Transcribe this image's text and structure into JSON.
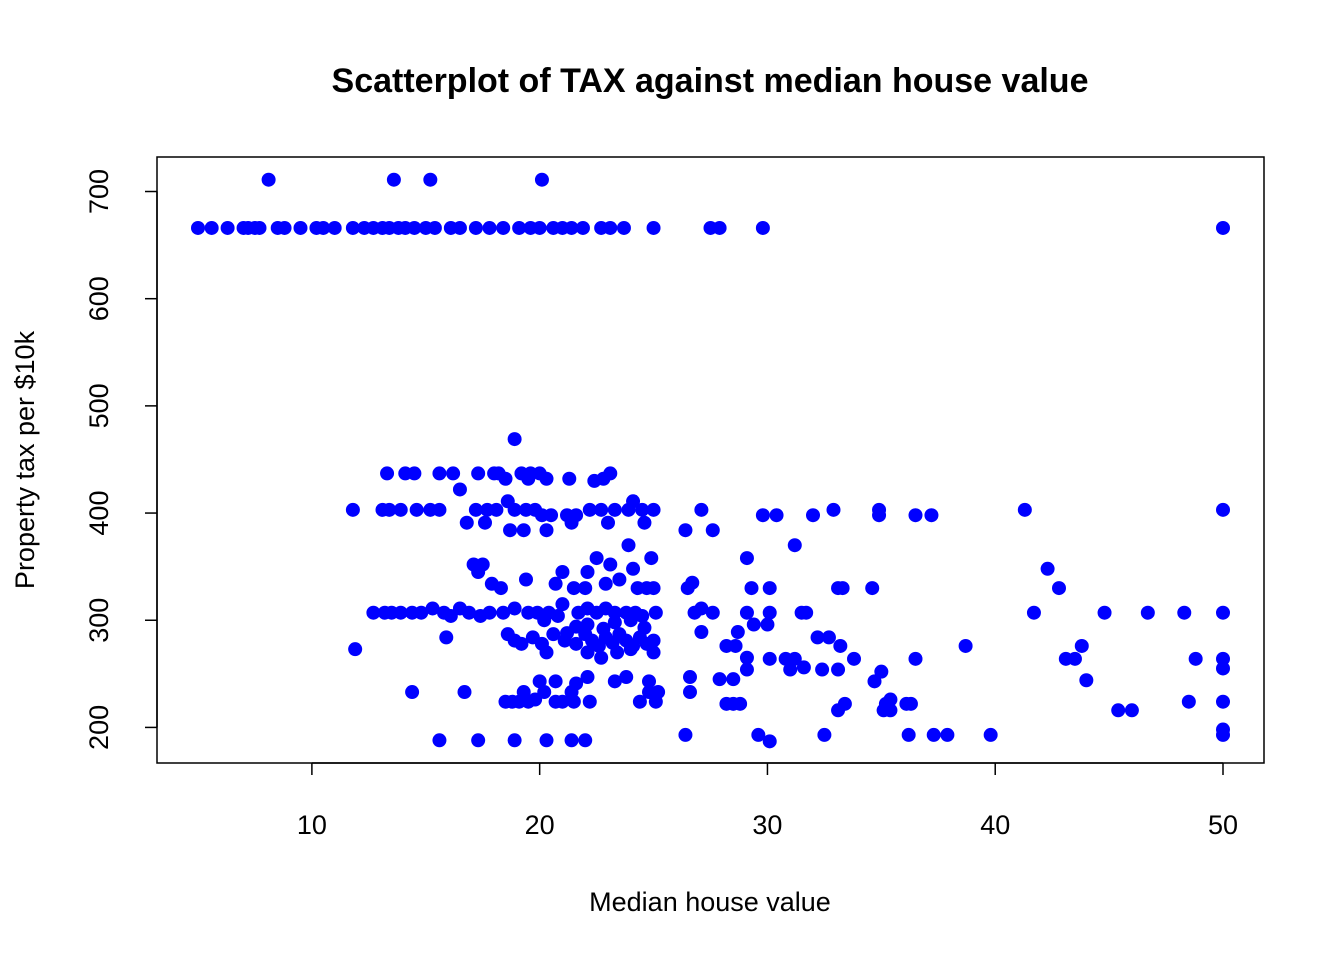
{
  "chart_data": {
    "type": "scatter",
    "title": "Scatterplot of TAX against median house value",
    "xlabel": "Median house value",
    "ylabel": "Property tax per $10k",
    "xlim": [
      3.2,
      51.8
    ],
    "ylim": [
      166.8,
      732.2
    ],
    "x_ticks": [
      10,
      20,
      30,
      40,
      50
    ],
    "y_ticks": [
      200,
      300,
      400,
      500,
      600,
      700
    ],
    "grid": false,
    "legend": "none",
    "point_color": "#0000ff",
    "points": [
      [
        8.1,
        711
      ],
      [
        13.6,
        711
      ],
      [
        15.2,
        711
      ],
      [
        20.1,
        711
      ],
      [
        5.0,
        666
      ],
      [
        5.6,
        666
      ],
      [
        6.3,
        666
      ],
      [
        7.0,
        666
      ],
      [
        7.2,
        666
      ],
      [
        7.5,
        666
      ],
      [
        7.7,
        666
      ],
      [
        8.5,
        666
      ],
      [
        8.8,
        666
      ],
      [
        9.5,
        666
      ],
      [
        10.2,
        666
      ],
      [
        10.5,
        666
      ],
      [
        11.0,
        666
      ],
      [
        11.8,
        666
      ],
      [
        12.3,
        666
      ],
      [
        12.7,
        666
      ],
      [
        13.1,
        666
      ],
      [
        13.4,
        666
      ],
      [
        13.8,
        666
      ],
      [
        14.1,
        666
      ],
      [
        14.5,
        666
      ],
      [
        15.0,
        666
      ],
      [
        15.4,
        666
      ],
      [
        16.1,
        666
      ],
      [
        16.5,
        666
      ],
      [
        17.2,
        666
      ],
      [
        17.8,
        666
      ],
      [
        18.4,
        666
      ],
      [
        19.1,
        666
      ],
      [
        19.6,
        666
      ],
      [
        20.0,
        666
      ],
      [
        20.6,
        666
      ],
      [
        21.0,
        666
      ],
      [
        21.4,
        666
      ],
      [
        21.9,
        666
      ],
      [
        22.7,
        666
      ],
      [
        23.1,
        666
      ],
      [
        23.7,
        666
      ],
      [
        25.0,
        666
      ],
      [
        27.5,
        666
      ],
      [
        27.9,
        666
      ],
      [
        29.8,
        666
      ],
      [
        50.0,
        666
      ],
      [
        18.9,
        469
      ],
      [
        13.3,
        437
      ],
      [
        14.1,
        437
      ],
      [
        14.5,
        437
      ],
      [
        15.6,
        437
      ],
      [
        16.2,
        437
      ],
      [
        17.3,
        437
      ],
      [
        18.0,
        437
      ],
      [
        18.2,
        437
      ],
      [
        19.2,
        437
      ],
      [
        19.6,
        437
      ],
      [
        20.0,
        437
      ],
      [
        22.4,
        430
      ],
      [
        22.8,
        432
      ],
      [
        23.1,
        437
      ],
      [
        18.5,
        432
      ],
      [
        19.5,
        432
      ],
      [
        20.3,
        432
      ],
      [
        21.3,
        432
      ],
      [
        16.5,
        422
      ],
      [
        11.8,
        403
      ],
      [
        13.1,
        403
      ],
      [
        13.4,
        403
      ],
      [
        13.9,
        403
      ],
      [
        14.6,
        403
      ],
      [
        15.2,
        403
      ],
      [
        15.6,
        403
      ],
      [
        16.8,
        391
      ],
      [
        17.2,
        403
      ],
      [
        17.7,
        403
      ],
      [
        18.1,
        403
      ],
      [
        18.6,
        411
      ],
      [
        18.9,
        403
      ],
      [
        19.4,
        403
      ],
      [
        19.8,
        403
      ],
      [
        20.1,
        398
      ],
      [
        20.5,
        398
      ],
      [
        21.2,
        398
      ],
      [
        21.6,
        398
      ],
      [
        22.2,
        403
      ],
      [
        22.7,
        403
      ],
      [
        23.3,
        403
      ],
      [
        23.9,
        403
      ],
      [
        24.1,
        411
      ],
      [
        24.5,
        403
      ],
      [
        25.0,
        403
      ],
      [
        17.6,
        391
      ],
      [
        18.7,
        384
      ],
      [
        19.3,
        384
      ],
      [
        20.3,
        384
      ],
      [
        21.4,
        391
      ],
      [
        23.0,
        391
      ],
      [
        24.6,
        391
      ],
      [
        26.4,
        384
      ],
      [
        27.1,
        403
      ],
      [
        27.6,
        384
      ],
      [
        29.8,
        398
      ],
      [
        30.4,
        398
      ],
      [
        32.0,
        398
      ],
      [
        32.9,
        403
      ],
      [
        34.9,
        398
      ],
      [
        34.9,
        403
      ],
      [
        36.5,
        398
      ],
      [
        37.2,
        398
      ],
      [
        41.3,
        403
      ],
      [
        50.0,
        403
      ],
      [
        23.9,
        370
      ],
      [
        31.2,
        370
      ],
      [
        22.5,
        358
      ],
      [
        24.9,
        358
      ],
      [
        29.1,
        358
      ],
      [
        17.1,
        352
      ],
      [
        17.5,
        352
      ],
      [
        23.1,
        352
      ],
      [
        24.1,
        348
      ],
      [
        42.3,
        348
      ],
      [
        17.3,
        345
      ],
      [
        21.0,
        345
      ],
      [
        22.1,
        345
      ],
      [
        17.9,
        334
      ],
      [
        18.3,
        330
      ],
      [
        19.4,
        338
      ],
      [
        20.7,
        334
      ],
      [
        21.5,
        330
      ],
      [
        22.0,
        330
      ],
      [
        22.9,
        334
      ],
      [
        23.5,
        338
      ],
      [
        24.3,
        330
      ],
      [
        24.7,
        330
      ],
      [
        25.0,
        330
      ],
      [
        26.5,
        330
      ],
      [
        26.7,
        335
      ],
      [
        29.3,
        330
      ],
      [
        30.1,
        330
      ],
      [
        33.1,
        330
      ],
      [
        33.3,
        330
      ],
      [
        34.6,
        330
      ],
      [
        42.8,
        330
      ],
      [
        12.7,
        307
      ],
      [
        13.2,
        307
      ],
      [
        13.5,
        307
      ],
      [
        13.9,
        307
      ],
      [
        14.4,
        307
      ],
      [
        14.8,
        307
      ],
      [
        15.3,
        311
      ],
      [
        15.8,
        307
      ],
      [
        16.1,
        304
      ],
      [
        16.5,
        311
      ],
      [
        16.9,
        307
      ],
      [
        17.4,
        304
      ],
      [
        17.8,
        307
      ],
      [
        18.4,
        307
      ],
      [
        18.9,
        311
      ],
      [
        19.5,
        307
      ],
      [
        19.9,
        307
      ],
      [
        20.4,
        307
      ],
      [
        20.8,
        304
      ],
      [
        21.0,
        315
      ],
      [
        21.7,
        307
      ],
      [
        22.1,
        311
      ],
      [
        22.5,
        307
      ],
      [
        22.9,
        311
      ],
      [
        23.3,
        307
      ],
      [
        23.8,
        307
      ],
      [
        24.2,
        307
      ],
      [
        24.5,
        304
      ],
      [
        25.1,
        307
      ],
      [
        26.8,
        307
      ],
      [
        27.1,
        311
      ],
      [
        27.6,
        307
      ],
      [
        29.1,
        307
      ],
      [
        30.1,
        307
      ],
      [
        31.5,
        307
      ],
      [
        31.7,
        307
      ],
      [
        41.7,
        307
      ],
      [
        44.8,
        307
      ],
      [
        46.7,
        307
      ],
      [
        48.3,
        307
      ],
      [
        50.0,
        307
      ],
      [
        18.6,
        287
      ],
      [
        18.9,
        281
      ],
      [
        19.2,
        278
      ],
      [
        19.7,
        284
      ],
      [
        20.1,
        278
      ],
      [
        20.6,
        287
      ],
      [
        21.1,
        281
      ],
      [
        21.6,
        278
      ],
      [
        22.0,
        287
      ],
      [
        22.3,
        281
      ],
      [
        22.6,
        276
      ],
      [
        22.9,
        284
      ],
      [
        23.2,
        279
      ],
      [
        23.5,
        287
      ],
      [
        23.8,
        281
      ],
      [
        24.1,
        276
      ],
      [
        24.4,
        284
      ],
      [
        24.7,
        278
      ],
      [
        25.0,
        281
      ],
      [
        22.1,
        296
      ],
      [
        22.8,
        292
      ],
      [
        23.3,
        298
      ],
      [
        24.0,
        300
      ],
      [
        24.6,
        293
      ],
      [
        20.2,
        300
      ],
      [
        21.6,
        294
      ],
      [
        21.2,
        288
      ],
      [
        15.9,
        284
      ],
      [
        27.1,
        289
      ],
      [
        28.7,
        289
      ],
      [
        29.4,
        296
      ],
      [
        30.0,
        296
      ],
      [
        32.2,
        284
      ],
      [
        32.7,
        284
      ],
      [
        33.2,
        276
      ],
      [
        38.7,
        276
      ],
      [
        43.8,
        276
      ],
      [
        11.9,
        273
      ],
      [
        20.3,
        270
      ],
      [
        22.1,
        270
      ],
      [
        22.7,
        265
      ],
      [
        23.4,
        270
      ],
      [
        24.0,
        273
      ],
      [
        25.0,
        270
      ],
      [
        28.2,
        276
      ],
      [
        28.6,
        276
      ],
      [
        29.1,
        265
      ],
      [
        30.1,
        264
      ],
      [
        30.8,
        264
      ],
      [
        31.2,
        264
      ],
      [
        33.8,
        264
      ],
      [
        36.5,
        264
      ],
      [
        43.1,
        264
      ],
      [
        43.5,
        264
      ],
      [
        48.8,
        264
      ],
      [
        50.0,
        264
      ],
      [
        31.0,
        254
      ],
      [
        31.6,
        256
      ],
      [
        32.4,
        254
      ],
      [
        33.1,
        254
      ],
      [
        35.0,
        252
      ],
      [
        29.1,
        254
      ],
      [
        50.0,
        255
      ],
      [
        20.0,
        243
      ],
      [
        20.7,
        243
      ],
      [
        21.6,
        241
      ],
      [
        22.1,
        247
      ],
      [
        23.3,
        243
      ],
      [
        23.8,
        247
      ],
      [
        24.8,
        243
      ],
      [
        25.2,
        233
      ],
      [
        26.6,
        247
      ],
      [
        27.9,
        245
      ],
      [
        28.5,
        245
      ],
      [
        34.7,
        243
      ],
      [
        44.0,
        244
      ],
      [
        14.4,
        233
      ],
      [
        16.7,
        233
      ],
      [
        19.3,
        233
      ],
      [
        20.2,
        233
      ],
      [
        21.4,
        233
      ],
      [
        24.8,
        233
      ],
      [
        26.6,
        233
      ],
      [
        18.5,
        224
      ],
      [
        18.8,
        224
      ],
      [
        19.1,
        224
      ],
      [
        19.5,
        224
      ],
      [
        19.8,
        226
      ],
      [
        20.7,
        224
      ],
      [
        21.0,
        224
      ],
      [
        21.5,
        224
      ],
      [
        22.2,
        224
      ],
      [
        24.4,
        224
      ],
      [
        25.1,
        224
      ],
      [
        28.2,
        222
      ],
      [
        28.5,
        222
      ],
      [
        28.8,
        222
      ],
      [
        33.4,
        222
      ],
      [
        35.2,
        222
      ],
      [
        35.4,
        226
      ],
      [
        36.1,
        222
      ],
      [
        36.3,
        222
      ],
      [
        48.5,
        224
      ],
      [
        50.0,
        224
      ],
      [
        33.1,
        216
      ],
      [
        35.1,
        216
      ],
      [
        35.4,
        216
      ],
      [
        45.4,
        216
      ],
      [
        46.0,
        216
      ],
      [
        26.4,
        193
      ],
      [
        29.6,
        193
      ],
      [
        32.5,
        193
      ],
      [
        36.2,
        193
      ],
      [
        37.3,
        193
      ],
      [
        37.9,
        193
      ],
      [
        39.8,
        193
      ],
      [
        50.0,
        193
      ],
      [
        50.0,
        198
      ],
      [
        15.6,
        188
      ],
      [
        17.3,
        188
      ],
      [
        18.9,
        188
      ],
      [
        20.3,
        188
      ],
      [
        21.4,
        188
      ],
      [
        22.0,
        188
      ],
      [
        30.1,
        187
      ]
    ]
  }
}
